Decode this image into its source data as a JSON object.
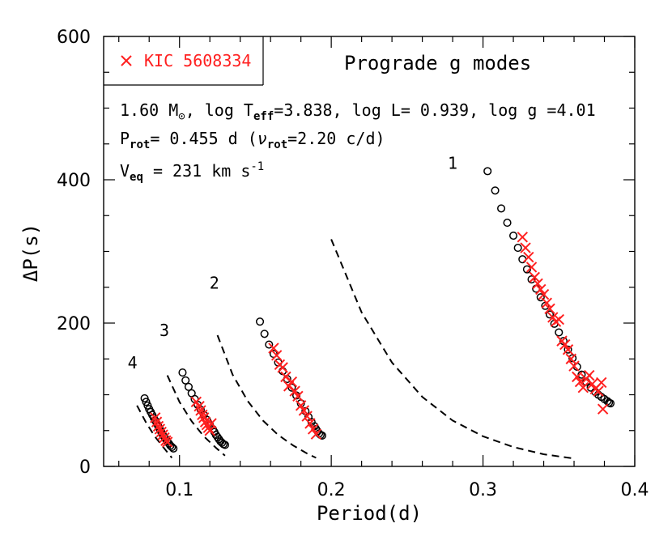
{
  "chart_data": {
    "type": "scatter",
    "title": "Prograde g modes",
    "xlabel": "Period(d)",
    "ylabel": "ΔP(s)",
    "xlim": [
      0.05,
      0.4
    ],
    "ylim": [
      0,
      600
    ],
    "x_ticks": [
      "0.1",
      "0.2",
      "0.3",
      "0.4"
    ],
    "y_ticks": [
      "0",
      "200",
      "400",
      "600"
    ],
    "grid": false,
    "legend": {
      "placement": "top-left",
      "entries": [
        {
          "marker": "x",
          "label": "KIC 5608334",
          "color": "#ff2020"
        }
      ]
    },
    "colors": {
      "observed": "#ff2020",
      "model": "#000000",
      "axes": "#000000"
    },
    "annotations": {
      "line1": "1.60 M⊙, log Teff=3.838, log L= 0.939, log g =4.01",
      "line2": "Prot= 0.455 d (νrot=2.20 c/d)",
      "line3": "Veq = 231 km s-1"
    },
    "mode_labels": [
      {
        "text": "1",
        "x": 0.28,
        "y": 415
      },
      {
        "text": "2",
        "x": 0.123,
        "y": 248
      },
      {
        "text": "3",
        "x": 0.09,
        "y": 182
      },
      {
        "text": "4",
        "x": 0.069,
        "y": 137
      }
    ],
    "dashed_curves": [
      {
        "name": "",
        "x": [
          0.2,
          0.22,
          0.24,
          0.26,
          0.28,
          0.3,
          0.32,
          0.34,
          0.36
        ],
        "y": [
          317,
          215,
          145,
          97,
          64,
          42,
          27,
          17,
          11
        ]
      },
      {
        "name": "",
        "x": [
          0.125,
          0.135,
          0.145,
          0.155,
          0.165,
          0.175,
          0.185,
          0.19
        ],
        "y": [
          183,
          128,
          91,
          64,
          44,
          29,
          17,
          12
        ]
      },
      {
        "name": "",
        "x": [
          0.092,
          0.1,
          0.108,
          0.116,
          0.124,
          0.13
        ],
        "y": [
          127,
          90,
          63,
          42,
          26,
          15
        ]
      },
      {
        "name": "",
        "x": [
          0.072,
          0.078,
          0.084,
          0.09,
          0.095
        ],
        "y": [
          85,
          61,
          41,
          25,
          12
        ]
      }
    ],
    "series": [
      {
        "name": "model-l1",
        "marker": "circle",
        "x": [
          0.303,
          0.308,
          0.312,
          0.316,
          0.32,
          0.323,
          0.326,
          0.329,
          0.332,
          0.335,
          0.338,
          0.341,
          0.344,
          0.347,
          0.35,
          0.353,
          0.356,
          0.359,
          0.362,
          0.365,
          0.368,
          0.371,
          0.374,
          0.376,
          0.378,
          0.38,
          0.382,
          0.383,
          0.384
        ],
        "y": [
          412,
          385,
          360,
          340,
          322,
          305,
          289,
          275,
          261,
          248,
          236,
          224,
          212,
          199,
          187,
          175,
          163,
          151,
          139,
          128,
          118,
          110,
          104,
          100,
          97,
          94,
          91,
          89,
          88
        ]
      },
      {
        "name": "model-l2",
        "marker": "circle",
        "x": [
          0.153,
          0.156,
          0.159,
          0.162,
          0.165,
          0.168,
          0.171,
          0.174,
          0.177,
          0.18,
          0.183,
          0.185,
          0.187,
          0.189,
          0.19,
          0.191,
          0.192,
          0.193,
          0.194
        ],
        "y": [
          202,
          185,
          170,
          157,
          145,
          133,
          122,
          110,
          99,
          88,
          77,
          69,
          62,
          56,
          52,
          49,
          46,
          44,
          43
        ]
      },
      {
        "name": "model-l3",
        "marker": "circle",
        "x": [
          0.102,
          0.104,
          0.106,
          0.108,
          0.11,
          0.112,
          0.114,
          0.116,
          0.118,
          0.12,
          0.122,
          0.123,
          0.124,
          0.125,
          0.126,
          0.127,
          0.128,
          0.129,
          0.13
        ],
        "y": [
          131,
          120,
          111,
          102,
          94,
          86,
          79,
          72,
          65,
          58,
          52,
          48,
          44,
          41,
          38,
          35,
          33,
          31,
          30
        ]
      },
      {
        "name": "model-l4",
        "marker": "circle",
        "x": [
          0.077,
          0.078,
          0.079,
          0.08,
          0.081,
          0.082,
          0.083,
          0.084,
          0.085,
          0.086,
          0.087,
          0.088,
          0.089,
          0.09,
          0.091,
          0.092,
          0.093,
          0.094,
          0.095,
          0.096
        ],
        "y": [
          95,
          90,
          85,
          80,
          76,
          72,
          68,
          64,
          60,
          56,
          52,
          48,
          44,
          41,
          38,
          35,
          32,
          29,
          27,
          25
        ]
      },
      {
        "name": "KIC 5608334",
        "marker": "x",
        "x": [
          0.326,
          0.328,
          0.33,
          0.332,
          0.334,
          0.336,
          0.338,
          0.34,
          0.342,
          0.344,
          0.346,
          0.348,
          0.35,
          0.352,
          0.354,
          0.356,
          0.358,
          0.36,
          0.362,
          0.364,
          0.366,
          0.368,
          0.37,
          0.372,
          0.374,
          0.376,
          0.378,
          0.379,
          0.162,
          0.164,
          0.166,
          0.168,
          0.17,
          0.172,
          0.174,
          0.176,
          0.178,
          0.18,
          0.182,
          0.184,
          0.186,
          0.188,
          0.19,
          0.111,
          0.113,
          0.114,
          0.115,
          0.116,
          0.117,
          0.118,
          0.119,
          0.12,
          0.121,
          0.084,
          0.085,
          0.086,
          0.087,
          0.088,
          0.089,
          0.09,
          0.091,
          0.092
        ],
        "y": [
          320,
          305,
          292,
          278,
          264,
          255,
          247,
          240,
          228,
          220,
          208,
          202,
          205,
          175,
          170,
          163,
          150,
          140,
          125,
          118,
          110,
          122,
          127,
          115,
          108,
          105,
          117,
          80,
          165,
          155,
          142,
          138,
          125,
          112,
          118,
          105,
          98,
          85,
          78,
          70,
          60,
          52,
          45,
          90,
          84,
          78,
          72,
          68,
          62,
          58,
          54,
          50,
          60,
          68,
          62,
          56,
          52,
          48,
          44,
          40,
          36,
          34
        ]
      }
    ]
  }
}
